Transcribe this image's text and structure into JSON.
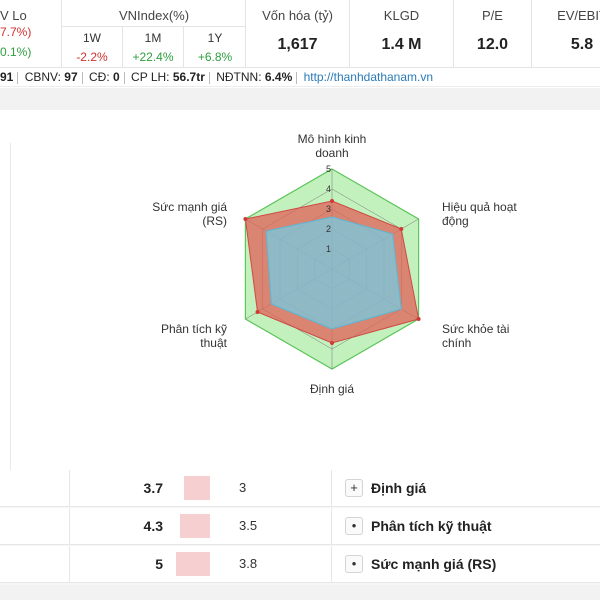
{
  "header": {
    "lo": {
      "label": "V Lo",
      "v1": "7.7%)",
      "v2": "0.1%)"
    },
    "vnindex": {
      "title": "VNIndex(%)",
      "periods": [
        {
          "label": "1W",
          "value": "-2.2%",
          "sign": "neg"
        },
        {
          "label": "1M",
          "value": "+22.4%",
          "sign": "pos"
        },
        {
          "label": "1Y",
          "value": "+6.8%",
          "sign": "pos"
        }
      ]
    },
    "stats": [
      {
        "label": "Vốn hóa (tỷ)",
        "value": "1,617"
      },
      {
        "label": "KLGD",
        "value": "1.4 M"
      },
      {
        "label": "P/E",
        "value": "12.0"
      },
      {
        "label": "EV/EBIT",
        "value": "5.8"
      }
    ]
  },
  "info": {
    "prefix": "91",
    "cbnv_label": "CBNV:",
    "cbnv_value": "97",
    "cd_label": "CĐ:",
    "cd_value": "0",
    "cplh_label": "CP LH:",
    "cplh_value": "56.7tr",
    "ndtnn_label": "NĐTNN:",
    "ndtnn_value": "6.4%",
    "website": "http://thanhdathanam.vn"
  },
  "radar": {
    "ring_labels": [
      "1",
      "2",
      "3",
      "4",
      "5"
    ],
    "axes": [
      {
        "lines": [
          "Mô hình kinh",
          "doanh"
        ]
      },
      {
        "lines": [
          "Hiệu quả hoạt",
          "động"
        ]
      },
      {
        "lines": [
          "Sức khỏe tài",
          "chính"
        ]
      },
      {
        "lines": [
          "Định giá"
        ]
      },
      {
        "lines": [
          "Phân tích kỹ",
          "thuật"
        ]
      },
      {
        "lines": [
          "Sức mạnh giá",
          "(RS)"
        ]
      }
    ],
    "company_scores": [
      3.4,
      4.0,
      5.0,
      3.7,
      4.3,
      5.0
    ],
    "average_scores": [
      2.6,
      3.5,
      4.0,
      3.0,
      3.5,
      3.8
    ],
    "colors": {
      "company_fill": "#e0605a",
      "average_fill": "#6ecfe8",
      "grid_fill": "#b8eeb2",
      "grid_stroke": "#5cc55a"
    }
  },
  "table": {
    "rows": [
      {
        "score": "3.7",
        "score_value": 3.7,
        "average": "3",
        "button": "+",
        "label": "Định giá"
      },
      {
        "score": "4.3",
        "score_value": 4.3,
        "average": "3.5",
        "button": "•",
        "label": "Phân tích kỹ thuật"
      },
      {
        "score": "5",
        "score_value": 5.0,
        "average": "3.8",
        "button": "•",
        "label": "Sức mạnh giá (RS)"
      }
    ]
  }
}
